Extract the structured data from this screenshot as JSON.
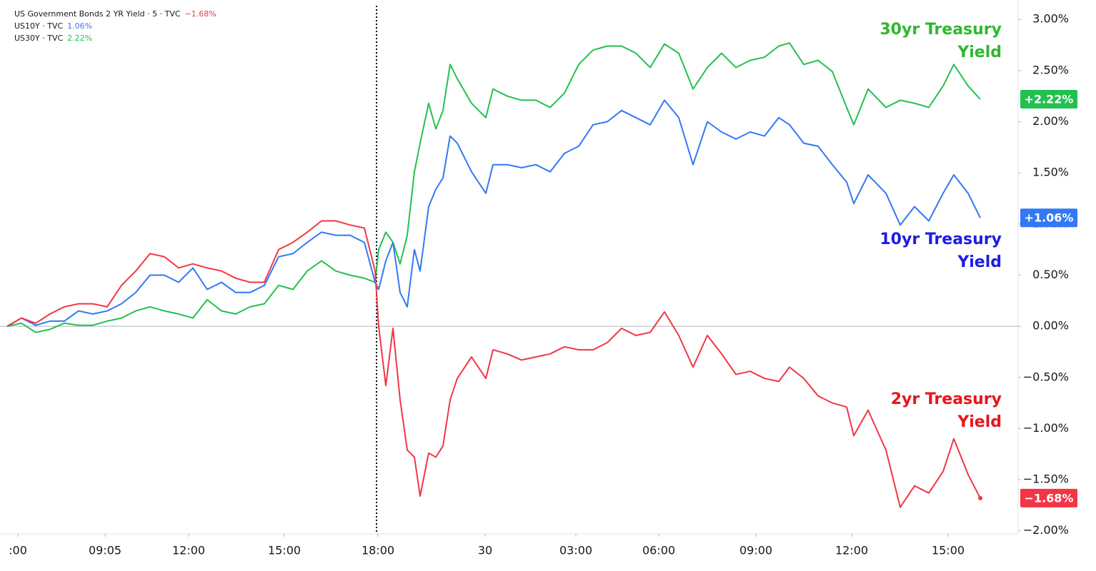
{
  "chart_data": {
    "type": "line",
    "x": [
      0,
      2,
      4,
      6,
      8,
      10,
      12,
      14,
      16,
      18,
      20,
      22,
      24,
      26,
      28,
      30,
      32,
      34,
      36,
      38,
      40,
      42,
      44,
      46,
      48,
      50,
      51.5,
      52,
      53,
      54,
      55,
      56,
      57,
      57.8,
      59,
      60,
      61,
      62,
      63,
      65,
      67,
      68,
      70,
      72,
      74,
      76,
      78,
      80,
      82,
      84,
      86,
      88,
      90,
      92,
      94,
      96,
      98,
      100,
      102,
      104,
      106,
      108,
      109.5,
      111.5,
      113.5,
      115.5,
      117.5,
      118.5,
      120.5,
      123,
      125,
      127,
      129,
      131,
      132.5,
      134.5,
      136.2
    ],
    "series": [
      {
        "name": "US Government Bonds 2 YR Yield · 5 · TVC",
        "legend_value": "−1.68%",
        "last_label": "−1.68%",
        "color": "#f23645",
        "values": [
          0,
          0.08,
          0.03,
          0.12,
          0.19,
          0.22,
          0.22,
          0.19,
          0.4,
          0.54,
          0.71,
          0.68,
          0.57,
          0.61,
          0.57,
          0.54,
          0.47,
          0.43,
          0.43,
          0.75,
          0.82,
          0.92,
          1.03,
          1.03,
          0.99,
          0.96,
          0.54,
          0,
          -0.58,
          -0.02,
          -0.72,
          -1.21,
          -1.28,
          -1.66,
          -1.24,
          -1.28,
          -1.17,
          -0.72,
          -0.51,
          -0.3,
          -0.51,
          -0.23,
          -0.27,
          -0.33,
          -0.3,
          -0.27,
          -0.2,
          -0.23,
          -0.23,
          -0.16,
          -0.02,
          -0.09,
          -0.06,
          0.14,
          -0.09,
          -0.4,
          -0.09,
          -0.27,
          -0.47,
          -0.44,
          -0.51,
          -0.54,
          -0.4,
          -0.51,
          -0.68,
          -0.75,
          -0.79,
          -1.07,
          -0.82,
          -1.21,
          -1.77,
          -1.56,
          -1.63,
          -1.42,
          -1.1,
          -1.45,
          -1.68
        ]
      },
      {
        "name": "US10Y · TVC",
        "legend_value": "1.06%",
        "last_label": "+1.06%",
        "color": "#3179f5",
        "values": [
          0,
          0.08,
          0.01,
          0.05,
          0.05,
          0.15,
          0.12,
          0.15,
          0.22,
          0.33,
          0.5,
          0.5,
          0.43,
          0.57,
          0.36,
          0.43,
          0.33,
          0.33,
          0.4,
          0.68,
          0.71,
          0.82,
          0.92,
          0.89,
          0.89,
          0.82,
          0.43,
          0.36,
          0.64,
          0.82,
          0.33,
          0.19,
          0.75,
          0.54,
          1.17,
          1.34,
          1.45,
          1.86,
          1.79,
          1.51,
          1.3,
          1.58,
          1.58,
          1.55,
          1.58,
          1.51,
          1.69,
          1.76,
          1.97,
          2.0,
          2.11,
          2.04,
          1.97,
          2.21,
          2.04,
          1.58,
          2.0,
          1.9,
          1.83,
          1.9,
          1.86,
          2.04,
          1.97,
          1.79,
          1.76,
          1.58,
          1.41,
          1.2,
          1.48,
          1.3,
          0.99,
          1.17,
          1.03,
          1.3,
          1.48,
          1.3,
          1.06
        ]
      },
      {
        "name": "US30Y · TVC",
        "legend_value": "2.22%",
        "last_label": "+2.22%",
        "color": "#22c14f",
        "values": [
          0,
          0.03,
          -0.06,
          -0.03,
          0.03,
          0.01,
          0.01,
          0.05,
          0.08,
          0.15,
          0.19,
          0.15,
          0.12,
          0.08,
          0.26,
          0.15,
          0.12,
          0.19,
          0.22,
          0.4,
          0.36,
          0.54,
          0.64,
          0.54,
          0.5,
          0.47,
          0.43,
          0.75,
          0.92,
          0.82,
          0.61,
          0.89,
          1.51,
          1.79,
          2.18,
          1.93,
          2.11,
          2.56,
          2.42,
          2.18,
          2.04,
          2.32,
          2.25,
          2.21,
          2.21,
          2.14,
          2.28,
          2.56,
          2.7,
          2.74,
          2.74,
          2.67,
          2.53,
          2.76,
          2.67,
          2.32,
          2.53,
          2.67,
          2.53,
          2.6,
          2.63,
          2.74,
          2.77,
          2.56,
          2.6,
          2.49,
          2.14,
          1.97,
          2.32,
          2.14,
          2.21,
          2.18,
          2.14,
          2.35,
          2.56,
          2.35,
          2.22
        ]
      }
    ],
    "annotations": [
      {
        "text": "30yr Treasury Yield",
        "color": "#2eb82e"
      },
      {
        "text": "10yr Treasury Yield",
        "color": "#1c1ce6"
      },
      {
        "text": "2yr Treasury Yield",
        "color": "#e8141c"
      }
    ],
    "xlim": [
      0,
      141.5
    ],
    "xticks": [
      {
        "value": 1.5,
        "label": ":00"
      },
      {
        "value": 13.7,
        "label": "09:05"
      },
      {
        "value": 25.4,
        "label": "12:00"
      },
      {
        "value": 38.8,
        "label": "15:00"
      },
      {
        "value": 51.9,
        "label": "18:00"
      },
      {
        "value": 66.9,
        "label": "30"
      },
      {
        "value": 79.6,
        "label": "03:00"
      },
      {
        "value": 91.2,
        "label": "06:00"
      },
      {
        "value": 104.8,
        "label": "09:00"
      },
      {
        "value": 118.2,
        "label": "12:00"
      },
      {
        "value": 131.7,
        "label": "15:00"
      }
    ],
    "ylim": [
      -2.03,
      3.19
    ],
    "yticks": [
      {
        "value": 3,
        "label": "3.00%"
      },
      {
        "value": 2.5,
        "label": "2.50%"
      },
      {
        "value": 2,
        "label": "2.00%"
      },
      {
        "value": 1.5,
        "label": "1.50%"
      },
      {
        "value": 1,
        "label": "1.00%"
      },
      {
        "value": 0.5,
        "label": "0.50%"
      },
      {
        "value": 0,
        "label": "0.00%"
      },
      {
        "value": -0.5,
        "label": "−0.50%"
      },
      {
        "value": -1,
        "label": "−1.00%"
      },
      {
        "value": -1.5,
        "label": "−1.50%"
      },
      {
        "value": -2,
        "label": "−2.00%"
      }
    ],
    "grid": false
  }
}
